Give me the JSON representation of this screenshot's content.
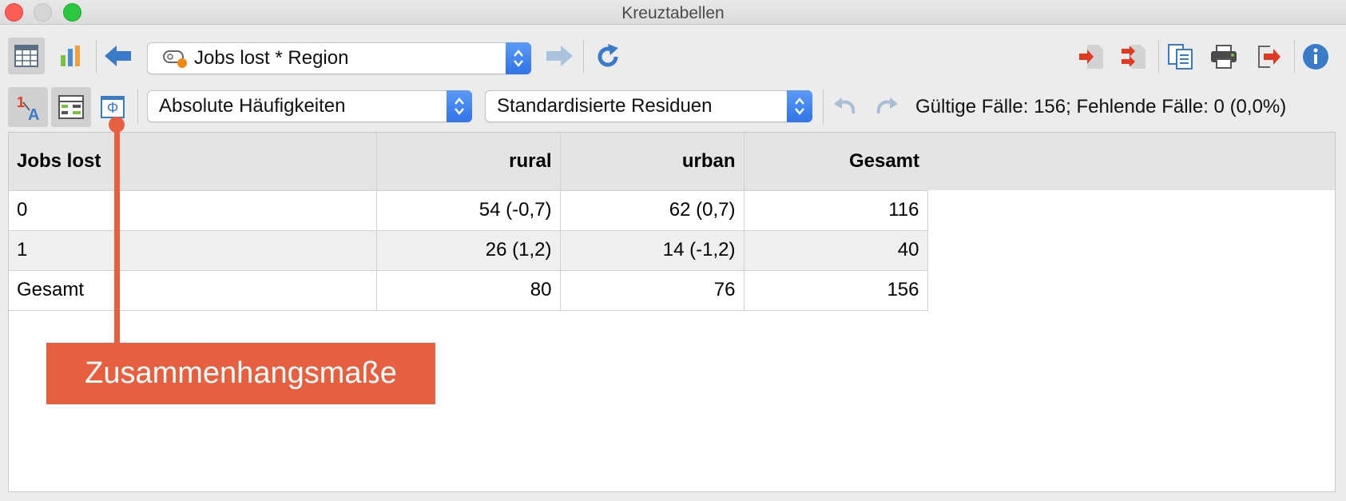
{
  "window": {
    "title": "Kreuztabellen"
  },
  "toolbar": {
    "variable_combo": {
      "value": "Jobs lost * Region"
    }
  },
  "toolbar2": {
    "display_combo": {
      "value": "Absolute Häufigkeiten"
    },
    "residuals_combo": {
      "value": "Standardisierte Residuen"
    },
    "phi_symbol": "Φ",
    "status_text": "Gültige Fälle: 156;  Fehlende Fälle: 0 (0,0%)"
  },
  "table": {
    "headers": [
      "Jobs lost",
      "rural",
      "urban",
      "Gesamt"
    ],
    "rows": [
      [
        "0",
        "54 (-0,7)",
        "62 (0,7)",
        "116"
      ],
      [
        "1",
        "26 (1,2)",
        "14 (-1,2)",
        "40"
      ],
      [
        "Gesamt",
        "80",
        "76",
        "156"
      ]
    ]
  },
  "callout": {
    "text": "Zusammenhangsmaße"
  },
  "colors": {
    "accent": "#e65f3e",
    "combo_arrow": "#3a7ff0",
    "header_bg": "#e4e4e4"
  }
}
